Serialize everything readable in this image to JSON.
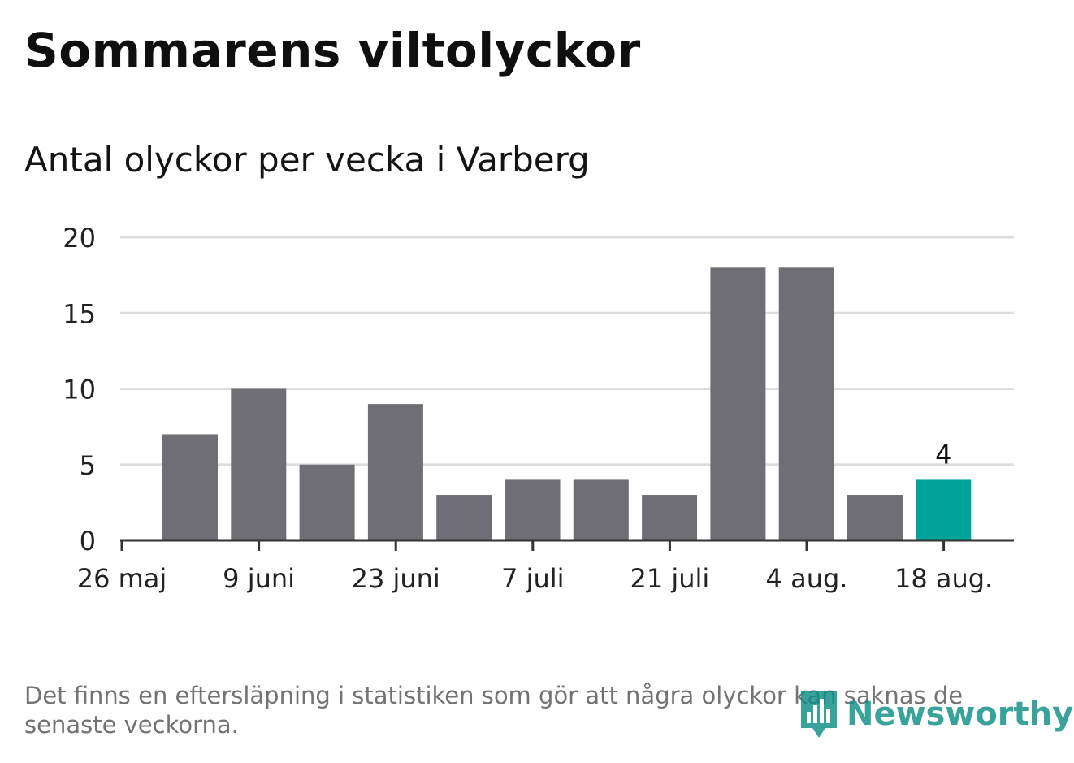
{
  "header": {
    "title": "Sommarens viltolyckor",
    "subtitle": "Antal olyckor per vecka i Varberg"
  },
  "footer": {
    "note": "Det finns en eftersläpning i statistiken som gör att några olyckor kan saknas de senaste veckorna.",
    "logo_text": "Newsworthy",
    "logo_icon": "bar-chart-speech-bubble-icon"
  },
  "colors": {
    "bar": "#6e6e74",
    "highlight": "#00a399",
    "grid": "#dddddd",
    "axis": "#333333",
    "brand": "#0e8f86"
  },
  "chart_data": {
    "type": "bar",
    "title": "Antal olyckor per vecka i Varberg",
    "xlabel": "",
    "ylabel": "",
    "x_tick_labels": [
      "26 maj",
      "9 juni",
      "23 juni",
      "7 juli",
      "21 juli",
      "4 aug.",
      "18 aug."
    ],
    "y_ticks": [
      0,
      5,
      10,
      15,
      20
    ],
    "ylim": [
      0,
      20
    ],
    "grid": true,
    "series": [
      {
        "values": [
          7,
          10,
          5,
          9,
          3,
          4,
          4,
          3,
          18,
          18,
          3,
          4
        ],
        "highlight_index": 11,
        "data_labels": [
          {
            "index": 11,
            "text": "4"
          }
        ]
      }
    ]
  }
}
